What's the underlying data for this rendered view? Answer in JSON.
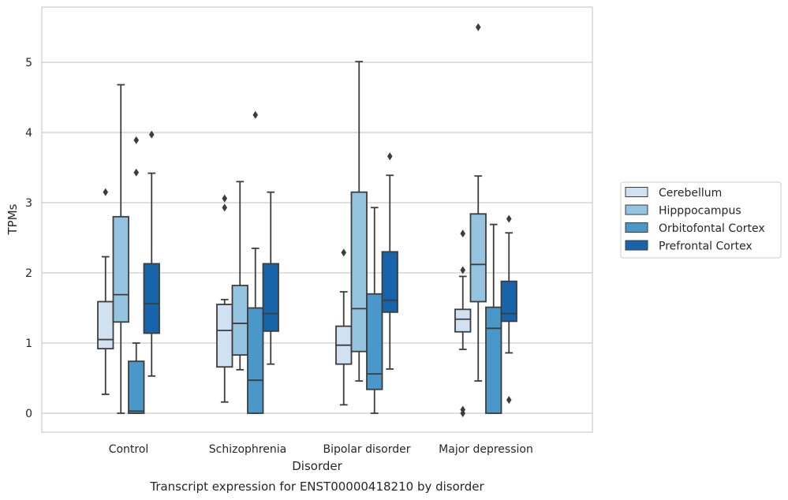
{
  "chart_data": {
    "type": "boxplot",
    "title": "",
    "caption": "Transcript expression for ENST00000418210 by disorder",
    "xlabel": "Disorder",
    "ylabel": "TPMs",
    "ylim": [
      -0.27,
      5.8
    ],
    "yticks": [
      "0",
      "1",
      "2",
      "3",
      "4",
      "5"
    ],
    "categories": [
      "Control",
      "Schizophrenia",
      "Bipolar disorder",
      "Major depression"
    ],
    "grid": true,
    "legend_position": "right",
    "series": [
      {
        "name": "Cerebellum",
        "color": "#d0e1f2",
        "boxes": [
          {
            "whisker_low": 0.27,
            "q1": 0.92,
            "median": 1.05,
            "q3": 1.59,
            "whisker_high": 2.23,
            "outliers": [
              3.15
            ]
          },
          {
            "whisker_low": 0.16,
            "q1": 0.66,
            "median": 1.18,
            "q3": 1.55,
            "whisker_high": 1.62,
            "outliers": [
              2.93,
              3.06
            ]
          },
          {
            "whisker_low": 0.12,
            "q1": 0.7,
            "median": 0.97,
            "q3": 1.24,
            "whisker_high": 1.73,
            "outliers": [
              2.29
            ]
          },
          {
            "whisker_low": 0.91,
            "q1": 1.16,
            "median": 1.34,
            "q3": 1.48,
            "whisker_high": 1.95,
            "outliers": [
              2.04,
              2.56,
              0.05,
              0.0
            ]
          }
        ]
      },
      {
        "name": "Hipppocampus",
        "color": "#94c4df",
        "boxes": [
          {
            "whisker_low": 0.0,
            "q1": 1.3,
            "median": 1.69,
            "q3": 2.8,
            "whisker_high": 4.68,
            "outliers": []
          },
          {
            "whisker_low": 0.62,
            "q1": 0.83,
            "median": 1.28,
            "q3": 1.82,
            "whisker_high": 3.3,
            "outliers": []
          },
          {
            "whisker_low": 0.46,
            "q1": 0.88,
            "median": 1.49,
            "q3": 3.15,
            "whisker_high": 5.01,
            "outliers": []
          },
          {
            "whisker_low": 0.46,
            "q1": 1.59,
            "median": 2.12,
            "q3": 2.84,
            "whisker_high": 3.38,
            "outliers": [
              5.5
            ]
          }
        ]
      },
      {
        "name": "Orbitofontal Cortex",
        "color": "#4a98c9",
        "boxes": [
          {
            "whisker_low": 0.0,
            "q1": 0.0,
            "median": 0.03,
            "q3": 0.74,
            "whisker_high": 1.0,
            "outliers": [
              3.43,
              3.89
            ]
          },
          {
            "whisker_low": 0.0,
            "q1": 0.0,
            "median": 0.47,
            "q3": 1.5,
            "whisker_high": 2.35,
            "outliers": [
              4.25
            ]
          },
          {
            "whisker_low": 0.0,
            "q1": 0.34,
            "median": 0.56,
            "q3": 1.7,
            "whisker_high": 2.93,
            "outliers": []
          },
          {
            "whisker_low": 0.0,
            "q1": 0.0,
            "median": 1.21,
            "q3": 1.51,
            "whisker_high": 2.69,
            "outliers": []
          }
        ]
      },
      {
        "name": "Prefrontal Cortex",
        "color": "#1764ab",
        "boxes": [
          {
            "whisker_low": 0.53,
            "q1": 1.14,
            "median": 1.56,
            "q3": 2.13,
            "whisker_high": 3.42,
            "outliers": [
              3.97
            ]
          },
          {
            "whisker_low": 0.7,
            "q1": 1.17,
            "median": 1.42,
            "q3": 2.13,
            "whisker_high": 3.15,
            "outliers": []
          },
          {
            "whisker_low": 0.63,
            "q1": 1.44,
            "median": 1.61,
            "q3": 2.3,
            "whisker_high": 3.39,
            "outliers": [
              3.66
            ]
          },
          {
            "whisker_low": 0.86,
            "q1": 1.31,
            "median": 1.42,
            "q3": 1.88,
            "whisker_high": 2.57,
            "outliers": [
              2.77,
              0.19
            ]
          }
        ]
      }
    ]
  }
}
